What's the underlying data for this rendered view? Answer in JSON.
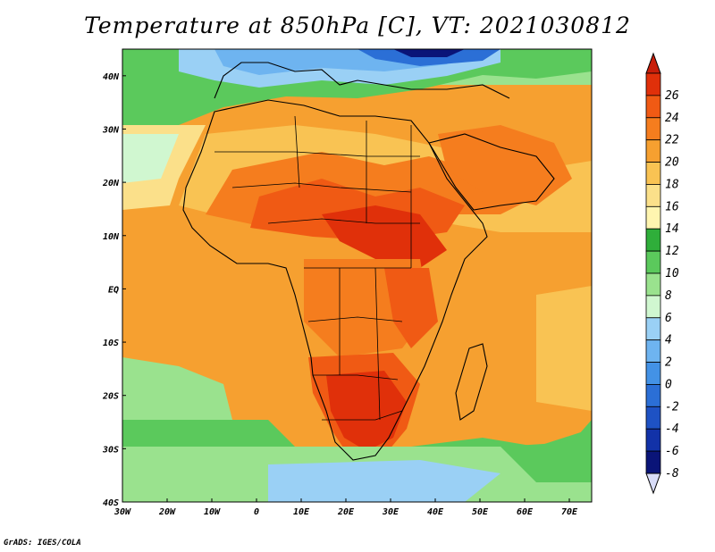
{
  "title": "Temperature at 850hPa [C], VT: 2021030812",
  "footer": "GrADS: IGES/COLA",
  "map": {
    "lon_range": [
      -30,
      75
    ],
    "lat_range": [
      -40,
      45
    ],
    "lon_ticks": [
      "30W",
      "20W",
      "10W",
      "0",
      "10E",
      "20E",
      "30E",
      "40E",
      "50E",
      "60E",
      "70E"
    ],
    "lat_ticks": [
      "40N",
      "30N",
      "20N",
      "10N",
      "EQ",
      "10S",
      "20S",
      "30S",
      "40S"
    ]
  },
  "colorbar": {
    "levels": [
      "26",
      "24",
      "22",
      "20",
      "18",
      "16",
      "14",
      "12",
      "10",
      "8",
      "6",
      "4",
      "2",
      "0",
      "-2",
      "-4",
      "-6",
      "-8"
    ],
    "colors": [
      "#e0300a",
      "#f05a14",
      "#f57d1e",
      "#f6a030",
      "#f9c353",
      "#fbe08a",
      "#fff5b0",
      "#2fae3a",
      "#5bc95c",
      "#9ae28e",
      "#d0f7d0",
      "#9ad0f5",
      "#6eb4f0",
      "#4392e6",
      "#2b6fd6",
      "#1e52c4",
      "#1232a8",
      "#0a1478"
    ],
    "over_color": "#c81e0a",
    "under_color": "#d8dcf8"
  }
}
